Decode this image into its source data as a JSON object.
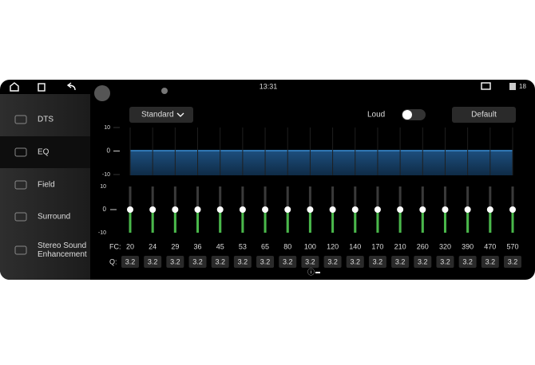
{
  "status_bar": {
    "time": "13:31",
    "badge": "18"
  },
  "sidebar": {
    "items": [
      "DTS",
      "EQ",
      "Field",
      "Surround",
      "Stereo Sound Enhancement"
    ],
    "selected": "EQ"
  },
  "toolbar": {
    "preset": "Standard",
    "loud_label": "Loud",
    "default_button": "Default"
  },
  "eq": {
    "axis": [
      10,
      0,
      -10
    ],
    "fc_label": "FC:",
    "frequencies": [
      20,
      24,
      29,
      36,
      45,
      53,
      65,
      80,
      100,
      120,
      140,
      170,
      210,
      260,
      320,
      390,
      470,
      570
    ],
    "q_label": "Q:",
    "q": [
      3.2,
      3.2,
      3.2,
      3.2,
      3.2,
      3.2,
      3.2,
      3.2,
      3.2,
      3.2,
      3.2,
      3.2,
      3.2,
      3.2,
      3.2,
      3.2,
      3.2,
      3.2
    ],
    "gains": [
      0,
      0,
      0,
      0,
      0,
      0,
      0,
      0,
      0,
      0,
      0,
      0,
      0,
      0,
      0,
      0,
      0,
      0
    ]
  }
}
